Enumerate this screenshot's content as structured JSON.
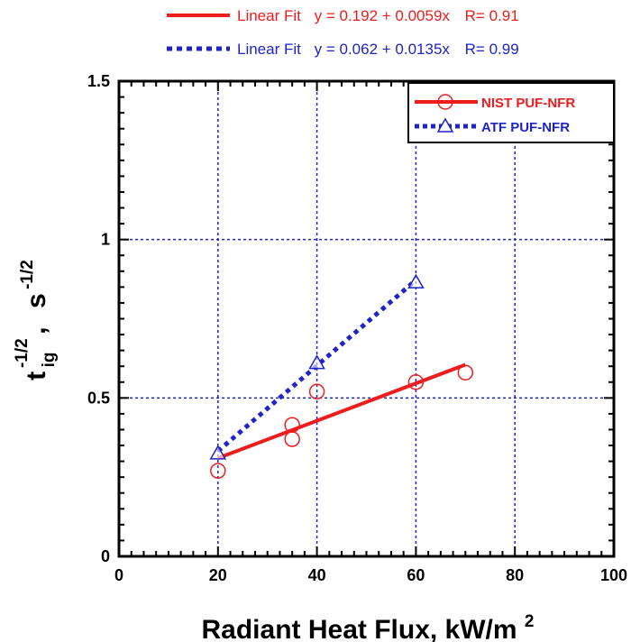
{
  "chart_data": {
    "type": "scatter",
    "xlabel": "Radiant Heat Flux,  kW/m",
    "xlabel_sup": "2",
    "ylabel_main": "t",
    "ylabel_sub": "ig",
    "ylabel_sup1": "-1/2",
    "ylabel_sep": ",",
    "ylabel_unit": "s",
    "ylabel_sup2": "-1/2",
    "xlim": [
      0,
      100
    ],
    "ylim": [
      0,
      1.5
    ],
    "xticks": [
      "0",
      "20",
      "40",
      "60",
      "80",
      "100"
    ],
    "yticks": [
      "0",
      "0.5",
      "1",
      "1.5"
    ],
    "xtick_values": [
      0,
      20,
      40,
      60,
      80,
      100
    ],
    "ytick_values": [
      0,
      0.5,
      1,
      1.5
    ],
    "grid_x": [
      20,
      40,
      60,
      80
    ],
    "grid_y": [
      0.5,
      1.0
    ],
    "grid": true,
    "legend_position": "top-right",
    "series": [
      {
        "name": "NIST PUF-NFR",
        "color": "#ee1c1c",
        "marker": "circle",
        "x": [
          20,
          35,
          35,
          40,
          60,
          70
        ],
        "y": [
          0.27,
          0.37,
          0.415,
          0.52,
          0.55,
          0.58
        ],
        "fit": {
          "label": "Linear Fit",
          "equation": "y = 0.192 + 0.0059x",
          "r": "R= 0.91",
          "x_range": [
            20,
            70
          ],
          "style": "solid"
        }
      },
      {
        "name": "ATF PUF-NFR",
        "color": "#1f24c8",
        "marker": "triangle",
        "x": [
          20,
          40,
          60
        ],
        "y": [
          0.325,
          0.61,
          0.865
        ],
        "fit": {
          "label": "Linear Fit",
          "equation": "y = 0.062 + 0.0135x",
          "r": "R= 0.99",
          "x_range": [
            20,
            60
          ],
          "style": "dotted"
        }
      }
    ]
  }
}
